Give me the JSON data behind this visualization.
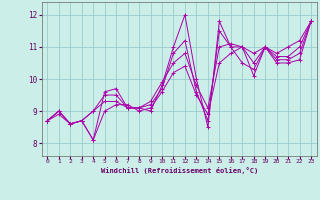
{
  "xlabel": "Windchill (Refroidissement éolien,°C)",
  "background_color": "#cceee8",
  "line_color": "#aa00aa",
  "grid_color": "#99cccc",
  "xlim": [
    -0.5,
    23.5
  ],
  "ylim": [
    7.6,
    12.4
  ],
  "xticks": [
    0,
    1,
    2,
    3,
    4,
    5,
    6,
    7,
    8,
    9,
    10,
    11,
    12,
    13,
    14,
    15,
    16,
    17,
    18,
    19,
    20,
    21,
    22,
    23
  ],
  "yticks": [
    8,
    9,
    10,
    11,
    12
  ],
  "series": [
    [
      8.7,
      9.0,
      8.6,
      8.7,
      8.1,
      9.6,
      9.7,
      9.1,
      9.1,
      9.0,
      9.8,
      11.0,
      12.0,
      10.0,
      8.5,
      11.8,
      11.0,
      11.0,
      10.1,
      11.0,
      10.5,
      10.5,
      10.6,
      11.8
    ],
    [
      8.7,
      8.9,
      8.6,
      8.7,
      8.1,
      9.0,
      9.2,
      9.2,
      9.0,
      9.1,
      9.6,
      10.2,
      10.4,
      9.5,
      8.9,
      10.5,
      10.8,
      11.0,
      10.5,
      11.0,
      10.8,
      11.0,
      11.2,
      11.8
    ],
    [
      8.7,
      9.0,
      8.6,
      8.7,
      9.0,
      9.3,
      9.3,
      9.1,
      9.1,
      9.3,
      9.9,
      10.5,
      10.8,
      9.8,
      9.1,
      11.0,
      11.1,
      11.0,
      10.8,
      11.0,
      10.7,
      10.7,
      11.0,
      11.8
    ],
    [
      8.7,
      9.0,
      8.6,
      8.7,
      9.0,
      9.5,
      9.5,
      9.1,
      9.1,
      9.2,
      9.7,
      10.8,
      11.2,
      9.6,
      8.7,
      11.5,
      11.0,
      10.5,
      10.3,
      11.0,
      10.6,
      10.6,
      10.8,
      11.8
    ]
  ]
}
